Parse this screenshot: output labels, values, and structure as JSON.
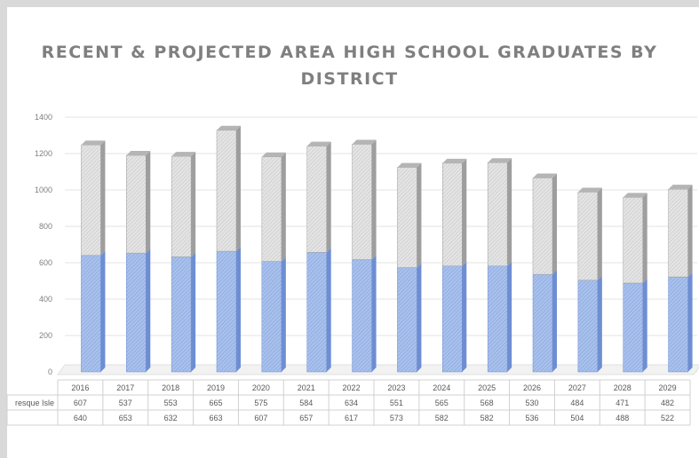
{
  "chart_data": {
    "type": "bar",
    "stacked": true,
    "title": [
      "RECENT & PROJECTED AREA HIGH SCHOOL GRADUATES BY",
      "DISTRICT"
    ],
    "categories": [
      "2016",
      "2017",
      "2018",
      "2019",
      "2020",
      "2021",
      "2022",
      "2023",
      "2024",
      "2025",
      "2026",
      "2027",
      "2028",
      "2029"
    ],
    "series": [
      {
        "name": "",
        "values": [
          640,
          653,
          632,
          663,
          607,
          657,
          617,
          573,
          582,
          582,
          536,
          504,
          488,
          522
        ],
        "color": "#9db7e6"
      },
      {
        "name": "resque Isle",
        "values": [
          607,
          537,
          553,
          665,
          575,
          584,
          634,
          551,
          565,
          568,
          530,
          484,
          471,
          482
        ],
        "color": "#d9d9d9"
      }
    ],
    "yticks": [
      0,
      200,
      400,
      600,
      800,
      1000,
      1200,
      1400
    ],
    "ylim": [
      0,
      1400
    ],
    "grid": true,
    "legend": "data table below chart"
  }
}
